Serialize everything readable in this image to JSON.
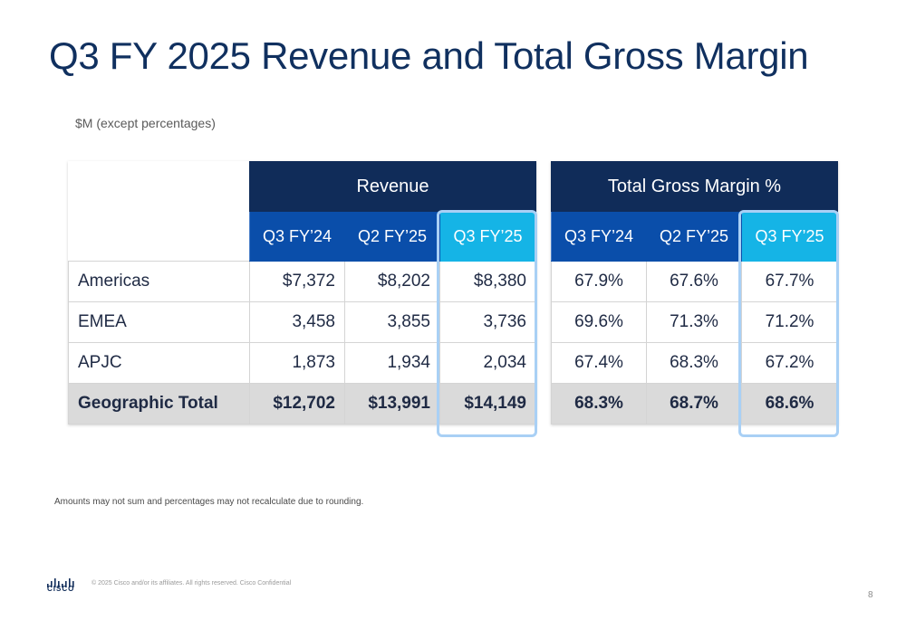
{
  "slide": {
    "title": "Q3 FY 2025 Revenue and Total Gross Margin",
    "subtitle": "$M (except percentages)",
    "footnote": "Amounts may not sum and percentages may not recalculate due to rounding.",
    "copyright": "© 2025  Cisco and/or its affiliates. All rights reserved.   Cisco Confidential",
    "page_number": "8",
    "logo_text": "CISCO"
  },
  "revenue": {
    "header": "Revenue",
    "columns": [
      "Q3 FY’24",
      "Q2 FY’25",
      "Q3 FY’25"
    ],
    "rows": [
      {
        "label": "Americas",
        "values": [
          "$7,372",
          "$8,202",
          "$8,380"
        ]
      },
      {
        "label": "EMEA",
        "values": [
          "3,458",
          "3,855",
          "3,736"
        ]
      },
      {
        "label": "APJC",
        "values": [
          "1,873",
          "1,934",
          "2,034"
        ]
      },
      {
        "label": "Geographic Total",
        "values": [
          "$12,702",
          "$13,991",
          "$14,149"
        ]
      }
    ]
  },
  "gross_margin": {
    "header": "Total Gross Margin %",
    "columns": [
      "Q3 FY’24",
      "Q2 FY’25",
      "Q3 FY’25"
    ],
    "rows": [
      {
        "values": [
          "67.9%",
          "67.6%",
          "67.7%"
        ]
      },
      {
        "values": [
          "69.6%",
          "71.3%",
          "71.2%"
        ]
      },
      {
        "values": [
          "67.4%",
          "68.3%",
          "67.2%"
        ]
      },
      {
        "values": [
          "68.3%",
          "68.7%",
          "68.6%"
        ]
      }
    ]
  },
  "colors": {
    "title": "#10305f",
    "header_dark": "#102c59",
    "header_sub": "#0a4eaa",
    "header_current": "#15b4e6",
    "highlight_border": "#a9d0f5",
    "total_row": "#dadada"
  }
}
